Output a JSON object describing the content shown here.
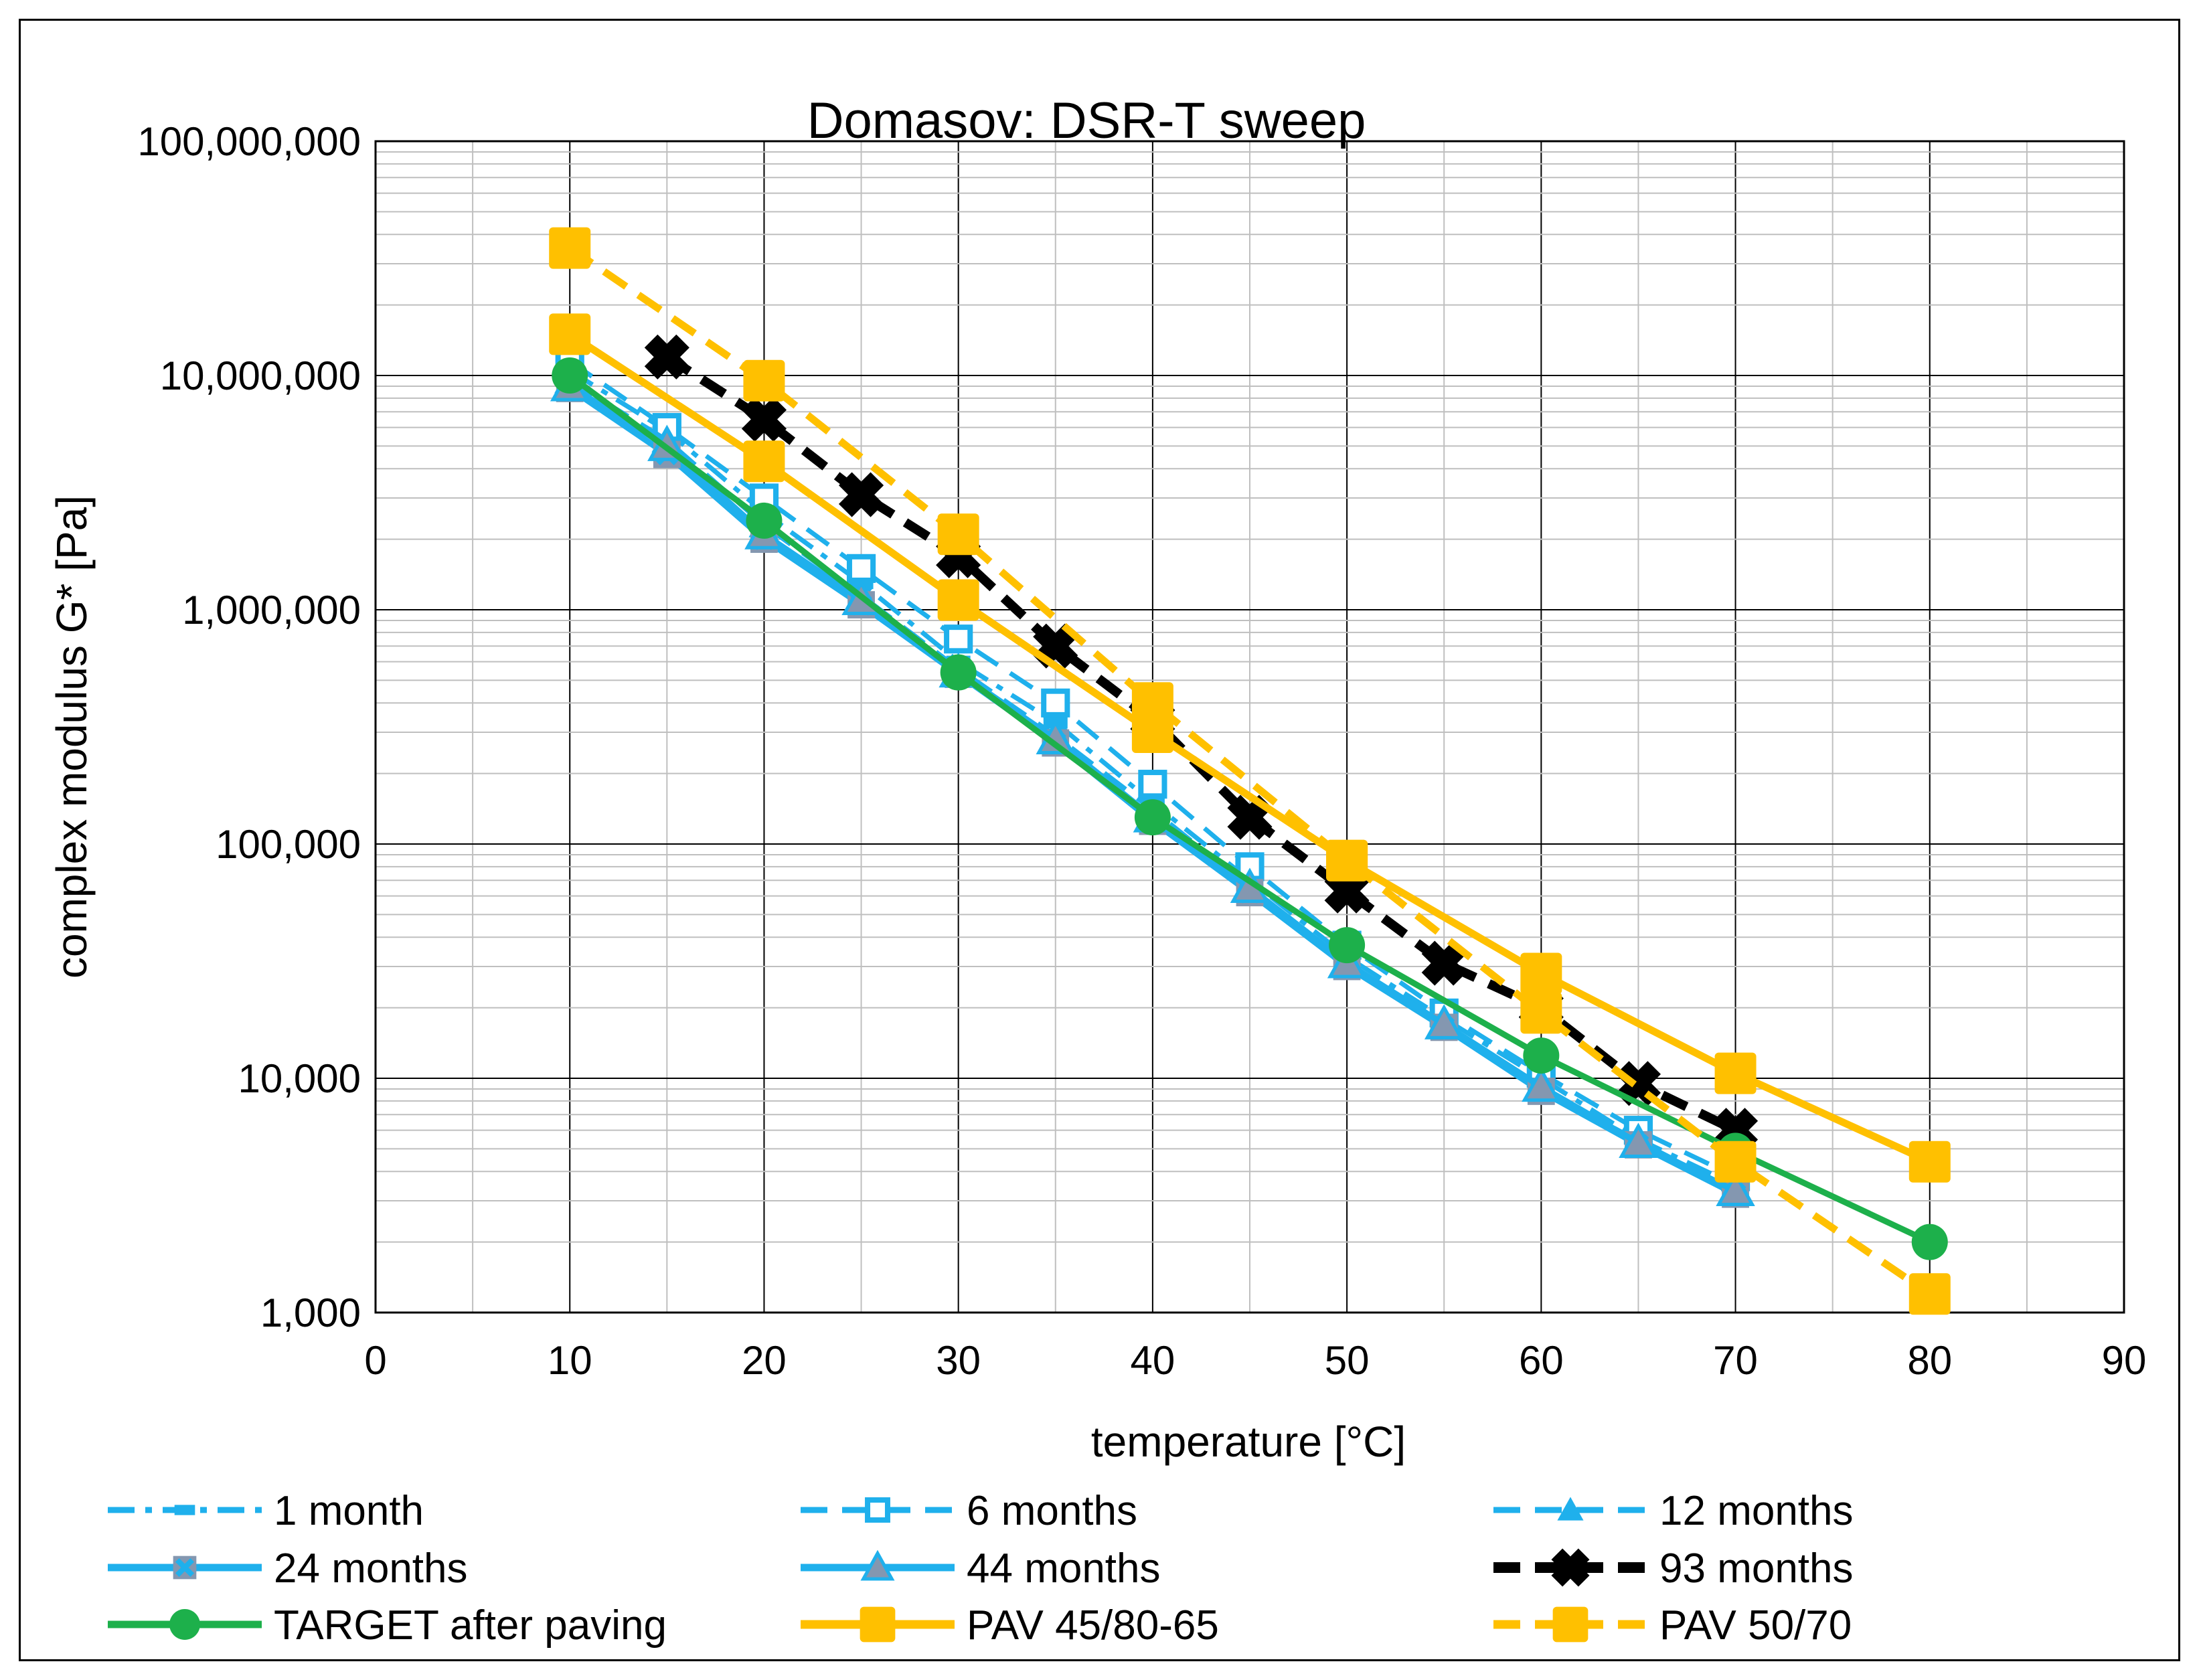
{
  "chart_data": {
    "type": "line",
    "title": "Domasov: DSR-T sweep",
    "xlabel": "temperature [°C]",
    "ylabel": "complex modulus G* [Pa]",
    "x_scale": "linear",
    "y_scale": "log",
    "xlim": [
      0,
      90
    ],
    "ylim": [
      1000,
      100000000
    ],
    "x_ticks": [
      0,
      10,
      20,
      30,
      40,
      50,
      60,
      70,
      80,
      90
    ],
    "x_tick_labels": [
      "0",
      "10",
      "20",
      "30",
      "40",
      "50",
      "60",
      "70",
      "80",
      "90"
    ],
    "y_ticks": [
      1000,
      10000,
      100000,
      1000000,
      10000000,
      100000000
    ],
    "y_tick_labels": [
      "1,000",
      "10,000",
      "100,000",
      "1,000,000",
      "10,000,000",
      "100,000,000"
    ],
    "grid": true,
    "legend_position": "bottom",
    "series": [
      {
        "name": "1 month",
        "color": "#1fb0ec",
        "dash": "dash-dot",
        "marker": "bar",
        "x": [
          10,
          15,
          20,
          25,
          30,
          35,
          40,
          45,
          50,
          55,
          60,
          65,
          70
        ],
        "y": [
          10500000,
          5800000,
          2600000,
          1300000,
          600000,
          330000,
          150000,
          70000,
          33000,
          18000,
          10000,
          5500,
          3500
        ]
      },
      {
        "name": "6 months",
        "color": "#1fb0ec",
        "dash": "dash",
        "marker": "square-open",
        "x": [
          10,
          15,
          20,
          25,
          30,
          35,
          40,
          45,
          50,
          55,
          60,
          65,
          70
        ],
        "y": [
          11500000,
          6000000,
          3000000,
          1500000,
          750000,
          400000,
          180000,
          80000,
          37000,
          19000,
          10500,
          6000,
          3800
        ]
      },
      {
        "name": "12 months",
        "color": "#1fb0ec",
        "dash": "dash",
        "marker": "triangle",
        "x": [
          10,
          15,
          20,
          25,
          30,
          35,
          40,
          45,
          50,
          55,
          60,
          65,
          70
        ],
        "y": [
          9500000,
          5300000,
          2300000,
          1150000,
          560000,
          290000,
          140000,
          65000,
          31000,
          17000,
          9000,
          5400,
          3300
        ]
      },
      {
        "name": "24 months",
        "color": "#1fb0ec",
        "dash": "solid",
        "marker": "x-grey",
        "x": [
          10,
          15,
          20,
          25,
          30,
          35,
          40,
          45,
          50,
          55,
          60,
          65,
          70
        ],
        "y": [
          8800000,
          4600000,
          2000000,
          1050000,
          530000,
          270000,
          125000,
          62000,
          30000,
          16500,
          8800,
          5200,
          3200
        ]
      },
      {
        "name": "44 months",
        "color": "#1fb0ec",
        "dash": "solid",
        "marker": "triangle-grey",
        "x": [
          10,
          15,
          20,
          25,
          30,
          35,
          40,
          45,
          50,
          55,
          60,
          65,
          70
        ],
        "y": [
          9000000,
          5000000,
          2100000,
          1100000,
          540000,
          280000,
          130000,
          65000,
          31000,
          17000,
          9200,
          5300,
          3300
        ]
      },
      {
        "name": "93 months",
        "color": "#000000",
        "dash": "dash",
        "marker": "x-bold",
        "x": [
          15,
          20,
          25,
          30,
          35,
          40,
          45,
          50,
          55,
          60,
          65,
          70
        ],
        "y": [
          12000000,
          6500000,
          3100000,
          1700000,
          700000,
          340000,
          130000,
          63000,
          31000,
          20000,
          9500,
          6000
        ]
      },
      {
        "name": "TARGET after paving",
        "color": "#1db04b",
        "dash": "solid",
        "marker": "circle",
        "x": [
          10,
          20,
          30,
          40,
          50,
          60,
          70,
          80
        ],
        "y": [
          10000000,
          2400000,
          540000,
          130000,
          37000,
          12500,
          4900,
          2000
        ]
      },
      {
        "name": "PAV 45/80-65",
        "color": "#ffc000",
        "dash": "solid",
        "marker": "square",
        "x": [
          10,
          20,
          30,
          40,
          50,
          60,
          70,
          80
        ],
        "y": [
          15000000,
          4300000,
          1100000,
          300000,
          85000,
          28000,
          10500,
          4400
        ]
      },
      {
        "name": "PAV 50/70",
        "color": "#ffc000",
        "dash": "dash",
        "marker": "square",
        "x": [
          10,
          20,
          30,
          40,
          50,
          60,
          70,
          80
        ],
        "y": [
          35000000,
          9500000,
          2100000,
          400000,
          85000,
          19000,
          4400,
          1200
        ]
      }
    ]
  }
}
